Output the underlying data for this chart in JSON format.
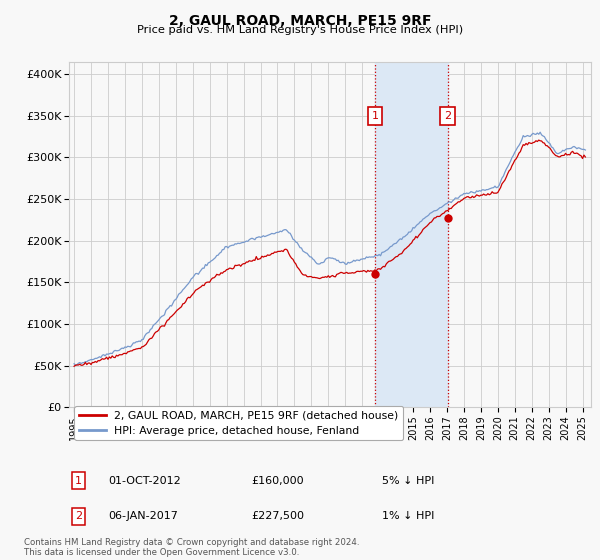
{
  "title": "2, GAUL ROAD, MARCH, PE15 9RF",
  "subtitle": "Price paid vs. HM Land Registry's House Price Index (HPI)",
  "ylabel_ticks": [
    "£0",
    "£50K",
    "£100K",
    "£150K",
    "£200K",
    "£250K",
    "£300K",
    "£350K",
    "£400K"
  ],
  "ylabel_values": [
    0,
    50000,
    100000,
    150000,
    200000,
    250000,
    300000,
    350000,
    400000
  ],
  "ylim": [
    0,
    415000
  ],
  "sale1_date": 2012.75,
  "sale1_price": 160000,
  "sale1_label": "1",
  "sale2_date": 2017.04,
  "sale2_price": 227500,
  "sale2_label": "2",
  "house_color": "#cc0000",
  "hpi_color": "#7799cc",
  "background_color": "#f8f8f8",
  "grid_color": "#cccccc",
  "highlight_color": "#dce8f5",
  "legend_house": "2, GAUL ROAD, MARCH, PE15 9RF (detached house)",
  "legend_hpi": "HPI: Average price, detached house, Fenland",
  "note1_label": "1",
  "note1_date": "01-OCT-2012",
  "note1_price": "£160,000",
  "note1_pct": "5% ↓ HPI",
  "note2_label": "2",
  "note2_date": "06-JAN-2017",
  "note2_price": "£227,500",
  "note2_pct": "1% ↓ HPI",
  "footer": "Contains HM Land Registry data © Crown copyright and database right 2024.\nThis data is licensed under the Open Government Licence v3.0."
}
